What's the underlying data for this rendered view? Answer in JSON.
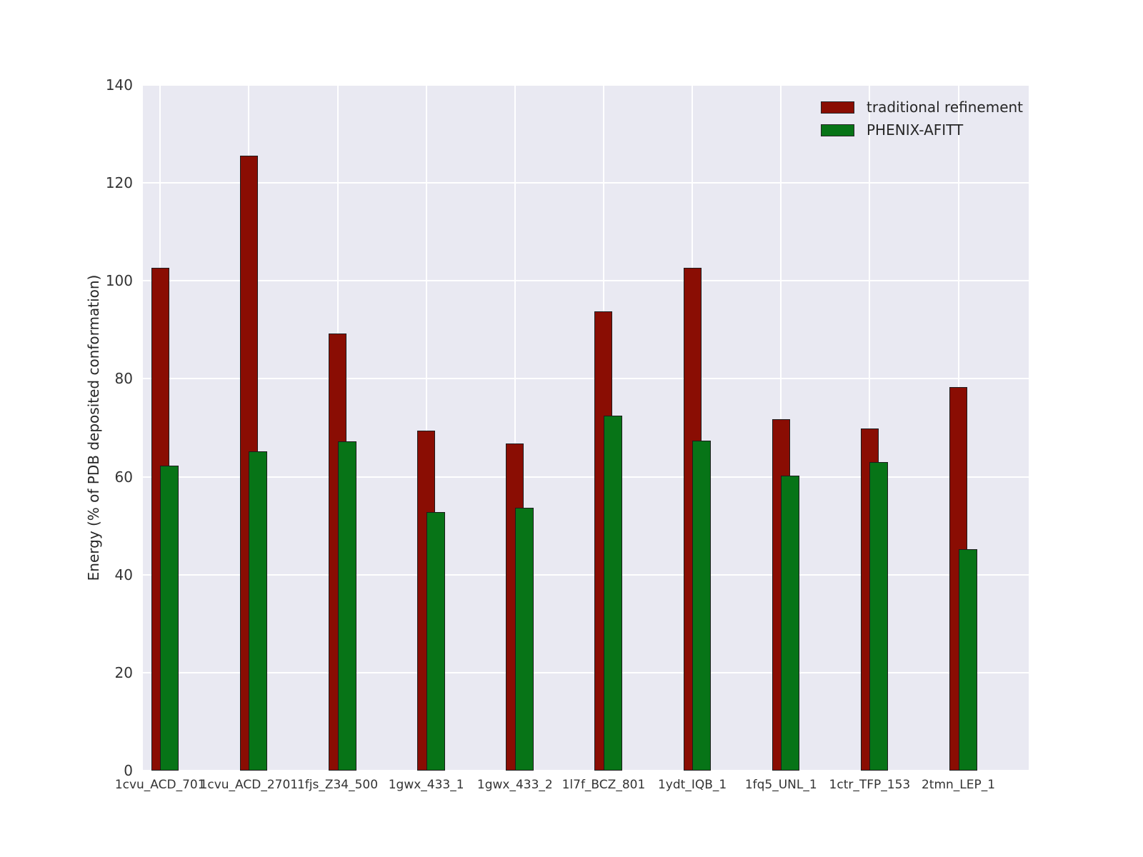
{
  "chart_data": {
    "type": "bar",
    "title": "",
    "xlabel": "",
    "ylabel": "Energy (% of PDB deposited conformation)",
    "ylim": [
      0,
      140
    ],
    "ytick_step": 20,
    "ytick_labels": [
      "0",
      "20",
      "40",
      "60",
      "80",
      "100",
      "120",
      "140"
    ],
    "grid": true,
    "legend_position": "upper right",
    "categories": [
      "1cvu_ACD_701",
      "1cvu_ACD_2701",
      "1fjs_Z34_500",
      "1gwx_433_1",
      "1gwx_433_2",
      "1l7f_BCZ_801",
      "1ydt_IQB_1",
      "1fq5_UNL_1",
      "1ctr_TFP_153",
      "2tmn_LEP_1"
    ],
    "series": [
      {
        "name": "traditional refinement",
        "color": "#8a0d03",
        "values": [
          102.6,
          125.6,
          89.3,
          69.4,
          66.8,
          93.7,
          102.6,
          71.7,
          69.9,
          78.3
        ]
      },
      {
        "name": "PHENIX-AFITT",
        "color": "#077417",
        "values": [
          62.2,
          65.2,
          67.2,
          52.8,
          53.6,
          72.5,
          67.4,
          60.2,
          63.0,
          45.2
        ]
      }
    ]
  },
  "colors": {
    "figure_background": "#ffffff",
    "plot_background": "#e9e9f2",
    "gridline": "#ffffff",
    "bar_edge": "#1c1c1c",
    "tick_text": "#333333",
    "label_text": "#262626"
  }
}
